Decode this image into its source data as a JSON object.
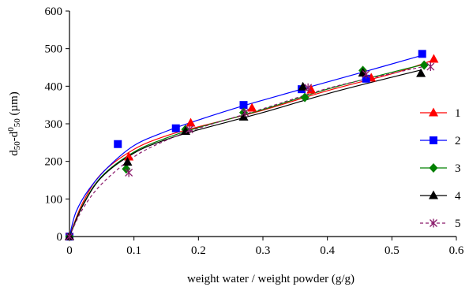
{
  "chart_data": {
    "type": "scatter",
    "title": "",
    "xlabel": "weight water / weight powder (g/g)",
    "ylabel_parts": [
      "d",
      "50",
      "-d",
      "0",
      "50",
      "  (µm)"
    ],
    "xlim": [
      0,
      0.6
    ],
    "ylim": [
      0,
      600
    ],
    "x_ticks": [
      0,
      0.1,
      0.2,
      0.3,
      0.4,
      0.5,
      0.6
    ],
    "x_tick_labels": [
      "0",
      "0.1",
      "0.2",
      "0.3",
      "0.4",
      "0.5",
      "0.6"
    ],
    "y_ticks": [
      0,
      100,
      200,
      300,
      400,
      500,
      600
    ],
    "y_tick_labels": [
      "0",
      "100",
      "200",
      "300",
      "400",
      "500",
      "600"
    ],
    "grid": false,
    "legend_position": "right",
    "series": [
      {
        "name": "1",
        "color": "#ff0000",
        "marker": "triangle",
        "line_style": "solid",
        "points": [
          [
            0,
            0
          ],
          [
            0.092,
            212
          ],
          [
            0.188,
            302
          ],
          [
            0.283,
            342
          ],
          [
            0.375,
            390
          ],
          [
            0.468,
            422
          ],
          [
            0.565,
            472
          ]
        ],
        "fit": [
          [
            0,
            0
          ],
          [
            0.02,
            88
          ],
          [
            0.05,
            168
          ],
          [
            0.1,
            232
          ],
          [
            0.15,
            268
          ],
          [
            0.2,
            292
          ],
          [
            0.3,
            336
          ],
          [
            0.4,
            388
          ],
          [
            0.5,
            433
          ],
          [
            0.565,
            470
          ]
        ]
      },
      {
        "name": "2",
        "color": "#0000ff",
        "marker": "square",
        "line_style": "solid",
        "points": [
          [
            0,
            0
          ],
          [
            0.075,
            246
          ],
          [
            0.165,
            288
          ],
          [
            0.27,
            350
          ],
          [
            0.36,
            392
          ],
          [
            0.46,
            420
          ],
          [
            0.547,
            486
          ]
        ],
        "fit": [
          [
            0,
            0
          ],
          [
            0.01,
            65
          ],
          [
            0.03,
            125
          ],
          [
            0.06,
            185
          ],
          [
            0.1,
            242
          ],
          [
            0.15,
            280
          ],
          [
            0.2,
            310
          ],
          [
            0.27,
            348
          ],
          [
            0.36,
            392
          ],
          [
            0.46,
            440
          ],
          [
            0.547,
            482
          ]
        ]
      },
      {
        "name": "3",
        "color": "#008000",
        "marker": "diamond",
        "line_style": "solid",
        "points": [
          [
            0,
            0
          ],
          [
            0.088,
            180
          ],
          [
            0.18,
            285
          ],
          [
            0.27,
            330
          ],
          [
            0.365,
            370
          ],
          [
            0.455,
            442
          ],
          [
            0.55,
            456
          ]
        ],
        "fit": [
          [
            0,
            0
          ],
          [
            0.02,
            82
          ],
          [
            0.05,
            160
          ],
          [
            0.1,
            225
          ],
          [
            0.15,
            262
          ],
          [
            0.2,
            290
          ],
          [
            0.3,
            338
          ],
          [
            0.4,
            392
          ],
          [
            0.5,
            437
          ],
          [
            0.55,
            458
          ]
        ]
      },
      {
        "name": "4",
        "color": "#000000",
        "marker": "triangle",
        "line_style": "solid",
        "points": [
          [
            0,
            0
          ],
          [
            0.09,
            198
          ],
          [
            0.18,
            280
          ],
          [
            0.27,
            318
          ],
          [
            0.362,
            398
          ],
          [
            0.455,
            435
          ],
          [
            0.545,
            434
          ]
        ],
        "fit": [
          [
            0,
            0
          ],
          [
            0.02,
            80
          ],
          [
            0.05,
            158
          ],
          [
            0.1,
            222
          ],
          [
            0.15,
            258
          ],
          [
            0.2,
            284
          ],
          [
            0.3,
            330
          ],
          [
            0.4,
            380
          ],
          [
            0.5,
            424
          ],
          [
            0.545,
            443
          ]
        ]
      },
      {
        "name": "5",
        "color": "#8b1a6b",
        "marker": "star",
        "line_style": "dashed",
        "points": [
          [
            0,
            0
          ],
          [
            0.092,
            170
          ],
          [
            0.186,
            285
          ],
          [
            0.272,
            330
          ],
          [
            0.37,
            396
          ],
          [
            0.46,
            432
          ],
          [
            0.56,
            452
          ]
        ],
        "fit": [
          [
            0,
            0
          ],
          [
            0.02,
            72
          ],
          [
            0.05,
            140
          ],
          [
            0.1,
            212
          ],
          [
            0.15,
            256
          ],
          [
            0.2,
            288
          ],
          [
            0.3,
            340
          ],
          [
            0.4,
            394
          ],
          [
            0.5,
            434
          ],
          [
            0.56,
            456
          ]
        ]
      }
    ]
  }
}
